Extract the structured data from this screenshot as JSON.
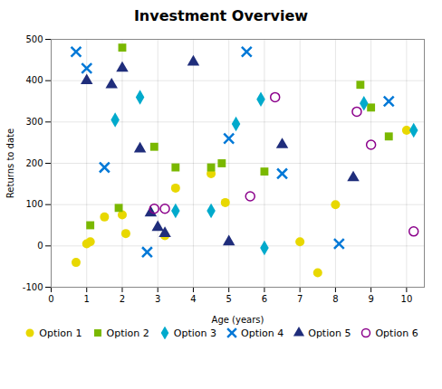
{
  "chart_data": {
    "type": "scatter",
    "title": "Investment Overview",
    "xlabel": "Age (years)",
    "ylabel": "Returns to date",
    "xlim": [
      0,
      10.5
    ],
    "ylim": [
      -100,
      500
    ],
    "xticks": [
      0,
      1,
      2,
      3,
      4,
      5,
      6,
      7,
      8,
      9,
      10
    ],
    "yticks": [
      -100,
      0,
      100,
      200,
      300,
      400,
      500
    ],
    "grid": true,
    "legend": "bottom",
    "series": [
      {
        "name": "Option 1",
        "color": "#e8d800",
        "marker": "circle",
        "x": [
          0.7,
          1.0,
          1.1,
          1.5,
          2.0,
          2.1,
          3.2,
          3.5,
          4.5,
          4.9,
          7.0,
          7.5,
          8.0,
          10.0
        ],
        "values": [
          -40,
          5,
          10,
          70,
          75,
          30,
          25,
          140,
          175,
          105,
          10,
          -65,
          100,
          280
        ]
      },
      {
        "name": "Option 2",
        "color": "#7ab800",
        "marker": "square",
        "x": [
          1.1,
          1.9,
          2.0,
          2.9,
          3.5,
          4.5,
          4.8,
          6.0,
          8.7,
          9.0,
          9.5
        ],
        "values": [
          50,
          92,
          480,
          240,
          190,
          190,
          200,
          180,
          390,
          335,
          265
        ]
      },
      {
        "name": "Option 3",
        "color": "#00aacc",
        "marker": "diamond",
        "x": [
          1.8,
          2.5,
          3.5,
          4.5,
          5.2,
          5.9,
          6.0,
          8.8,
          10.2
        ],
        "values": [
          305,
          360,
          85,
          85,
          295,
          355,
          -5,
          345,
          280
        ]
      },
      {
        "name": "Option 4",
        "color": "#0078d7",
        "marker": "x",
        "x": [
          0.7,
          1.0,
          1.5,
          2.7,
          5.0,
          5.5,
          6.5,
          8.1,
          9.5
        ],
        "values": [
          470,
          430,
          190,
          -15,
          260,
          470,
          175,
          5,
          350
        ]
      },
      {
        "name": "Option 5",
        "color": "#1f2d7b",
        "marker": "triangle",
        "x": [
          1.0,
          1.7,
          2.0,
          2.5,
          2.8,
          3.0,
          3.2,
          4.0,
          5.0,
          6.5,
          8.5
        ],
        "values": [
          400,
          390,
          430,
          235,
          80,
          45,
          30,
          445,
          10,
          245,
          165
        ]
      },
      {
        "name": "Option 6",
        "color": "#8b008b",
        "marker": "open_circle",
        "x": [
          2.9,
          3.2,
          5.6,
          6.3,
          8.6,
          9.0,
          10.2
        ],
        "values": [
          90,
          90,
          120,
          360,
          325,
          245,
          35
        ]
      }
    ]
  }
}
